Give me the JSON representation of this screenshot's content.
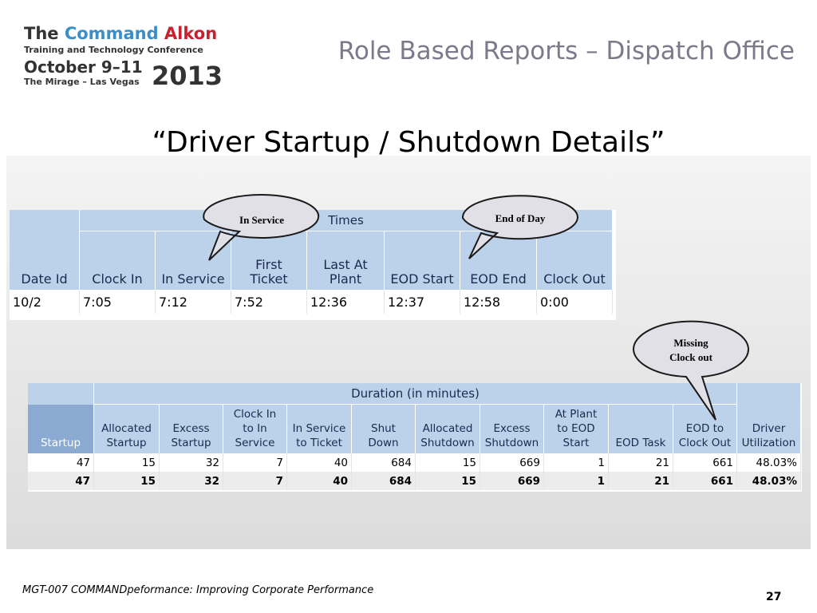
{
  "logo": {
    "line1": [
      "The",
      "Command",
      "Alkon"
    ],
    "line2": "Training and Technology Conference",
    "line3": "October 9–11",
    "line4": "The Mirage – Las Vegas",
    "year": "2013"
  },
  "header": {
    "title": "Role Based Reports – Dispatch Office"
  },
  "subtitle": "“Driver Startup / Shutdown Details”",
  "times_table": {
    "group": "Times",
    "columns": [
      [
        "Date Id"
      ],
      [
        "Clock In"
      ],
      [
        "In Service"
      ],
      [
        "First",
        "Ticket"
      ],
      [
        "Last At",
        "Plant"
      ],
      [
        "EOD Start"
      ],
      [
        "EOD End"
      ],
      [
        "Clock Out"
      ]
    ],
    "rows": [
      [
        "10/2",
        "7:05",
        "7:12",
        "7:52",
        "12:36",
        "12:37",
        "12:58",
        "0:00"
      ]
    ]
  },
  "duration_table": {
    "group": "Duration (in minutes)",
    "columns": [
      [
        "Startup"
      ],
      [
        "Allocated",
        "Startup"
      ],
      [
        "Excess",
        "Startup"
      ],
      [
        "Clock In",
        "to In",
        "Service"
      ],
      [
        "In Service",
        "to Ticket"
      ],
      [
        "Shut",
        "Down"
      ],
      [
        "Allocated",
        "Shutdown"
      ],
      [
        "Excess",
        "Shutdown"
      ],
      [
        "At Plant",
        "to EOD",
        "Start"
      ],
      [
        "EOD Task"
      ],
      [
        "EOD to",
        "Clock Out"
      ],
      [
        "Driver",
        "Utilization"
      ]
    ],
    "rows": [
      [
        "47",
        "15",
        "32",
        "7",
        "40",
        "684",
        "15",
        "669",
        "1",
        "21",
        "661",
        "48.03%"
      ],
      [
        "47",
        "15",
        "32",
        "7",
        "40",
        "684",
        "15",
        "669",
        "1",
        "21",
        "661",
        "48.03%"
      ]
    ]
  },
  "callouts": [
    {
      "lines": [
        "In Service"
      ]
    },
    {
      "lines": [
        "End of Day"
      ]
    },
    {
      "lines": [
        "Missing",
        "Clock out"
      ]
    }
  ],
  "footer": {
    "course": "MGT-007 COMMANDpeformance: Improving Corporate Performance",
    "page": "27"
  }
}
